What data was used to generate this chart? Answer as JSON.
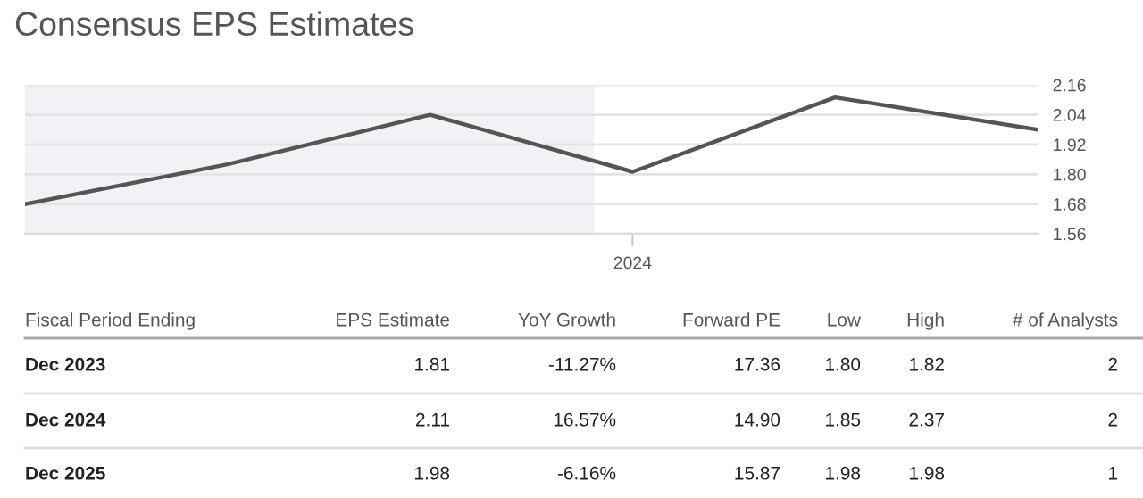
{
  "chart_data": {
    "type": "line",
    "title": "Consensus EPS Estimates",
    "categories": [
      null,
      null,
      null,
      "2024",
      null,
      null
    ],
    "series": [
      {
        "color": "#555555",
        "values": [
          1.68,
          1.84,
          2.04,
          1.81,
          2.11,
          1.98
        ]
      }
    ],
    "ylim": [
      1.56,
      2.16
    ],
    "yticks": [
      1.56,
      1.68,
      {
        "value": 1.8,
        "label": "1.80"
      },
      1.92,
      2.04,
      2.16
    ],
    "grid": "y",
    "marker": "none",
    "line_style": "solid",
    "annotations": [
      "Fiscal Period Ending",
      "EPS Estimate",
      "YoY Growth",
      "Forward PE",
      "Low",
      "High",
      "# of Analysts",
      "Dec 2023",
      "1.81",
      "-11.27%",
      "17.36",
      "1.80",
      "1.82",
      "2",
      "Dec 2024",
      "2.11",
      "16.57%",
      "14.90",
      "1.85",
      "2.37",
      "2",
      "Dec 2025",
      "1.98",
      "-6.16%",
      "15.87",
      "1.98",
      "1.98",
      "1"
    ]
  }
}
